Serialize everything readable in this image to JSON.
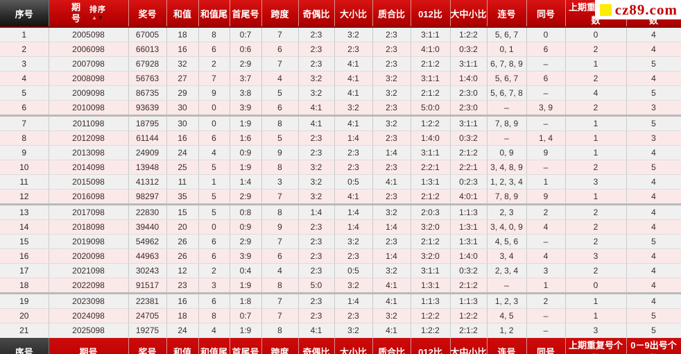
{
  "logo": {
    "text": "cz89.com",
    "square_color": "#ffec00",
    "text_color": "#c40000"
  },
  "sort": {
    "label": "排序",
    "up_icon": "▲",
    "down_icon": "▼"
  },
  "columns": [
    "序号",
    "期号",
    "奖号",
    "和值",
    "和值尾",
    "首尾号",
    "跨度",
    "奇偶比",
    "大小比",
    "质合比",
    "012比",
    "大中小比",
    "连号",
    "同号",
    "上期重复号个数",
    "0－9出号个数"
  ],
  "column_keys": [
    "seq",
    "period",
    "prize-number",
    "sum",
    "sum-tail",
    "first-last",
    "span",
    "odd-even-ratio",
    "big-small-ratio",
    "prime-composite-ratio",
    "012-ratio",
    "big-mid-small-ratio",
    "consecutive-numbers",
    "same-numbers",
    "prev-repeat-count",
    "digit-out-count"
  ],
  "colors": {
    "header_red": "#c00505",
    "header_dark": "#2e2e2e",
    "row_gray": "#f0f0f0",
    "row_pink": "#fbe9e9",
    "prize_bg": "#ffffff"
  },
  "rows": [
    [
      "1",
      "2005098",
      "67005",
      "18",
      "8",
      "0:7",
      "7",
      "2:3",
      "3:2",
      "2:3",
      "3:1:1",
      "1:2:2",
      "5, 6, 7",
      "0",
      "0",
      "4"
    ],
    [
      "2",
      "2006098",
      "66013",
      "16",
      "6",
      "0:6",
      "6",
      "2:3",
      "2:3",
      "2:3",
      "4:1:0",
      "0:3:2",
      "0, 1",
      "6",
      "2",
      "4"
    ],
    [
      "3",
      "2007098",
      "67928",
      "32",
      "2",
      "2:9",
      "7",
      "2:3",
      "4:1",
      "2:3",
      "2:1:2",
      "3:1:1",
      "6, 7, 8, 9",
      "–",
      "1",
      "5"
    ],
    [
      "4",
      "2008098",
      "56763",
      "27",
      "7",
      "3:7",
      "4",
      "3:2",
      "4:1",
      "3:2",
      "3:1:1",
      "1:4:0",
      "5, 6, 7",
      "6",
      "2",
      "4"
    ],
    [
      "5",
      "2009098",
      "86735",
      "29",
      "9",
      "3:8",
      "5",
      "3:2",
      "4:1",
      "3:2",
      "2:1:2",
      "2:3:0",
      "5, 6, 7, 8",
      "–",
      "4",
      "5"
    ],
    [
      "6",
      "2010098",
      "93639",
      "30",
      "0",
      "3:9",
      "6",
      "4:1",
      "3:2",
      "2:3",
      "5:0:0",
      "2:3:0",
      "–",
      "3, 9",
      "2",
      "3"
    ],
    [
      "7",
      "2011098",
      "18795",
      "30",
      "0",
      "1:9",
      "8",
      "4:1",
      "4:1",
      "3:2",
      "1:2:2",
      "3:1:1",
      "7, 8, 9",
      "–",
      "1",
      "5"
    ],
    [
      "8",
      "2012098",
      "61144",
      "16",
      "6",
      "1:6",
      "5",
      "2:3",
      "1:4",
      "2:3",
      "1:4:0",
      "0:3:2",
      "–",
      "1, 4",
      "1",
      "3"
    ],
    [
      "9",
      "2013098",
      "24909",
      "24",
      "4",
      "0:9",
      "9",
      "2:3",
      "2:3",
      "1:4",
      "3:1:1",
      "2:1:2",
      "0, 9",
      "9",
      "1",
      "4"
    ],
    [
      "10",
      "2014098",
      "13948",
      "25",
      "5",
      "1:9",
      "8",
      "3:2",
      "2:3",
      "2:3",
      "2:2:1",
      "2:2:1",
      "3, 4, 8, 9",
      "–",
      "2",
      "5"
    ],
    [
      "11",
      "2015098",
      "41312",
      "11",
      "1",
      "1:4",
      "3",
      "3:2",
      "0:5",
      "4:1",
      "1:3:1",
      "0:2:3",
      "1, 2, 3, 4",
      "1",
      "3",
      "4"
    ],
    [
      "12",
      "2016098",
      "98297",
      "35",
      "5",
      "2:9",
      "7",
      "3:2",
      "4:1",
      "2:3",
      "2:1:2",
      "4:0:1",
      "7, 8, 9",
      "9",
      "1",
      "4"
    ],
    [
      "13",
      "2017098",
      "22830",
      "15",
      "5",
      "0:8",
      "8",
      "1:4",
      "1:4",
      "3:2",
      "2:0:3",
      "1:1:3",
      "2, 3",
      "2",
      "2",
      "4"
    ],
    [
      "14",
      "2018098",
      "39440",
      "20",
      "0",
      "0:9",
      "9",
      "2:3",
      "1:4",
      "1:4",
      "3:2:0",
      "1:3:1",
      "3, 4, 0, 9",
      "4",
      "2",
      "4"
    ],
    [
      "15",
      "2019098",
      "54962",
      "26",
      "6",
      "2:9",
      "7",
      "2:3",
      "3:2",
      "2:3",
      "2:1:2",
      "1:3:1",
      "4, 5, 6",
      "–",
      "2",
      "5"
    ],
    [
      "16",
      "2020098",
      "44963",
      "26",
      "6",
      "3:9",
      "6",
      "2:3",
      "2:3",
      "1:4",
      "3:2:0",
      "1:4:0",
      "3, 4",
      "4",
      "3",
      "4"
    ],
    [
      "17",
      "2021098",
      "30243",
      "12",
      "2",
      "0:4",
      "4",
      "2:3",
      "0:5",
      "3:2",
      "3:1:1",
      "0:3:2",
      "2, 3, 4",
      "3",
      "2",
      "4"
    ],
    [
      "18",
      "2022098",
      "91517",
      "23",
      "3",
      "1:9",
      "8",
      "5:0",
      "3:2",
      "4:1",
      "1:3:1",
      "2:1:2",
      "–",
      "1",
      "0",
      "4"
    ],
    [
      "19",
      "2023098",
      "22381",
      "16",
      "6",
      "1:8",
      "7",
      "2:3",
      "1:4",
      "4:1",
      "1:1:3",
      "1:1:3",
      "1, 2, 3",
      "2",
      "1",
      "4"
    ],
    [
      "20",
      "2024098",
      "24705",
      "18",
      "8",
      "0:7",
      "7",
      "2:3",
      "2:3",
      "3:2",
      "1:2:2",
      "1:2:2",
      "4, 5",
      "–",
      "1",
      "5"
    ],
    [
      "21",
      "2025098",
      "19275",
      "24",
      "4",
      "1:9",
      "8",
      "4:1",
      "3:2",
      "4:1",
      "1:2:2",
      "2:1:2",
      "1, 2",
      "–",
      "3",
      "5"
    ]
  ]
}
